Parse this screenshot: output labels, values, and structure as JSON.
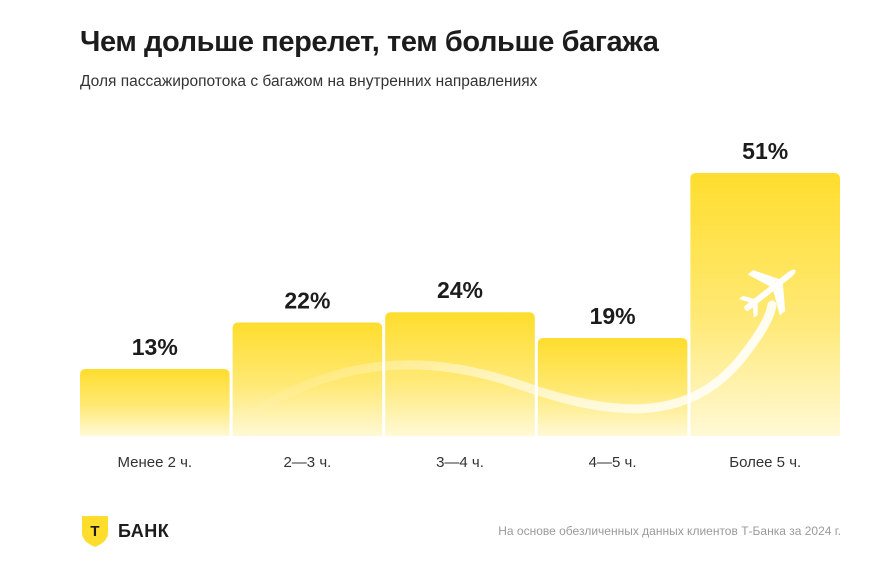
{
  "header": {
    "title": "Чем дольше перелет, тем больше багажа",
    "subtitle": "Доля пассажиропотока с багажом на внутренних направлениях"
  },
  "chart_data": {
    "type": "bar",
    "categories": [
      "Менее 2 ч.",
      "2—3 ч.",
      "3—4 ч.",
      "4—5 ч.",
      "Более 5 ч."
    ],
    "values": [
      13,
      22,
      24,
      19,
      51
    ],
    "value_labels": [
      "13%",
      "22%",
      "24%",
      "19%",
      "51%"
    ],
    "unit": "%",
    "title": "Чем дольше перелет, тем больше багажа",
    "subtitle": "Доля пассажиропотока с багажом на внутренних направлениях",
    "xlabel": "",
    "ylabel": "",
    "ylim": [
      0,
      51
    ],
    "grid": false,
    "legend": "none",
    "bar_color_top": "#FFDD2D",
    "bar_color_bottom": "#FFF9D6",
    "decoration": "airplane-icon"
  },
  "footer": {
    "brand_letter": "Т",
    "brand_text": "БАНК",
    "brand_color": "#FFDD2D",
    "note": "На основе обезличенных данных клиентов Т-Банка за 2024 г."
  }
}
